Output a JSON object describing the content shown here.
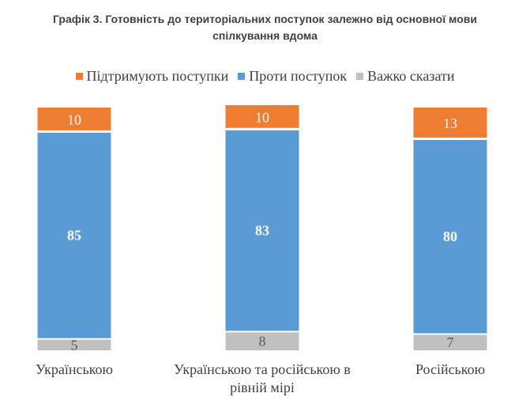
{
  "chart_data": {
    "type": "bar",
    "stacked": true,
    "title": "Графік 3. Готовність до територіальних поступок залежно від основної мови спілкування вдома",
    "title_lines": [
      "Графік 3. Готовність до територіальних поступок залежно від основної мови",
      "спілкування вдома"
    ],
    "categories": [
      "Українською",
      "Українською та російською в рівній мірі",
      "Російською"
    ],
    "category_lines": [
      [
        "Українською"
      ],
      [
        "Українською та російською в",
        "рівній мірі"
      ],
      [
        "Російською"
      ]
    ],
    "series": [
      {
        "name": "Підтримують поступки",
        "values": [
          10,
          10,
          13
        ],
        "color": "#ED7D31",
        "label_color": "#FFFFFF",
        "label_bold": false
      },
      {
        "name": "Проти поступок",
        "values": [
          85,
          83,
          80
        ],
        "color": "#5B9BD5",
        "label_color": "#FFFFFF",
        "label_bold": true
      },
      {
        "name": "Важко сказати",
        "values": [
          5,
          8,
          7
        ],
        "color": "#C0C0C0",
        "label_color": "#595959",
        "label_bold": false
      }
    ],
    "stack_order_bottom_to_top": [
      2,
      1,
      0
    ],
    "ylim": [
      0,
      100
    ],
    "legend_position": "top",
    "grid": false
  }
}
